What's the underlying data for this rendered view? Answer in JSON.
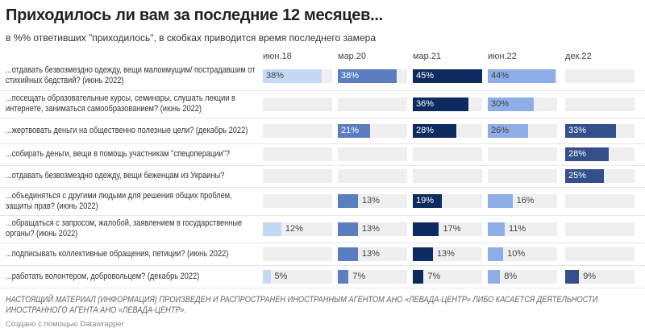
{
  "chart_data": {
    "type": "bar",
    "title": "Приходилось ли вам за последние 12 месяцев...",
    "subtitle": "в %% ответивших \"приходилось\", в скобках приводится время последнего замера",
    "columns": [
      "июн.18",
      "мар.20",
      "мар.21",
      "июн.22",
      "дек.22"
    ],
    "colors": [
      "#c4daf4",
      "#5b7ec0",
      "#0d2b60",
      "#8fade6",
      "#33508c"
    ],
    "xlim": [
      0,
      45
    ],
    "rows": [
      {
        "label": "...отдавать безвозмездно одежду, вещи малоимущим/ пострадавшим от стихийных бедствий? (июнь 2022)",
        "values": [
          38,
          38,
          45,
          44,
          null
        ]
      },
      {
        "label": "...посещать образовательные курсы, семинары, слушать лекции в интернете, заниматься самообразованием? (июнь 2022)",
        "values": [
          null,
          null,
          36,
          30,
          null
        ]
      },
      {
        "label": "...жертвовать деньги на общественно полезные цели? (декабрь 2022)",
        "values": [
          null,
          21,
          28,
          26,
          33
        ]
      },
      {
        "label": "...собирать деньги, вещи в помощь участникам \"спецоперации\"?",
        "values": [
          null,
          null,
          null,
          null,
          28
        ]
      },
      {
        "label": "...отдавать безвозмездно одежду, вещи беженцам из Украины?",
        "values": [
          null,
          null,
          null,
          null,
          25
        ]
      },
      {
        "label": "...объединяться с другими людьми для решения общих проблем, защиты прав? (июнь 2022)",
        "values": [
          null,
          13,
          19,
          16,
          null
        ]
      },
      {
        "label": "...обращаться с запросом, жалобой, заявлением в государственные органы? (июнь 2022)",
        "values": [
          12,
          13,
          17,
          11,
          null
        ]
      },
      {
        "label": "...подписывать коллективные обращения, петиции? (июнь 2022)",
        "values": [
          null,
          13,
          13,
          10,
          null
        ]
      },
      {
        "label": "...работать волонтером, добровольцем? (декабрь 2022)",
        "values": [
          5,
          7,
          7,
          8,
          9
        ]
      }
    ]
  },
  "footer": {
    "note": "НАСТОЯЩИЙ МАТЕРИАЛ (ИНФОРМАЦИЯ) ПРОИЗВЕДЕН И РАСПРОСТРАНЕН ИНОСТРАННЫМ АГЕНТОМ АНО «ЛЕВАДА-ЦЕНТР» ЛИБО КАСАЕТСЯ ДЕЯТЕЛЬНОСТИ ИНОСТРАННОГО АГЕНТА АНО «ЛЕВАДА-ЦЕНТР».",
    "credit": "Создано с помощью Datawrapper"
  }
}
